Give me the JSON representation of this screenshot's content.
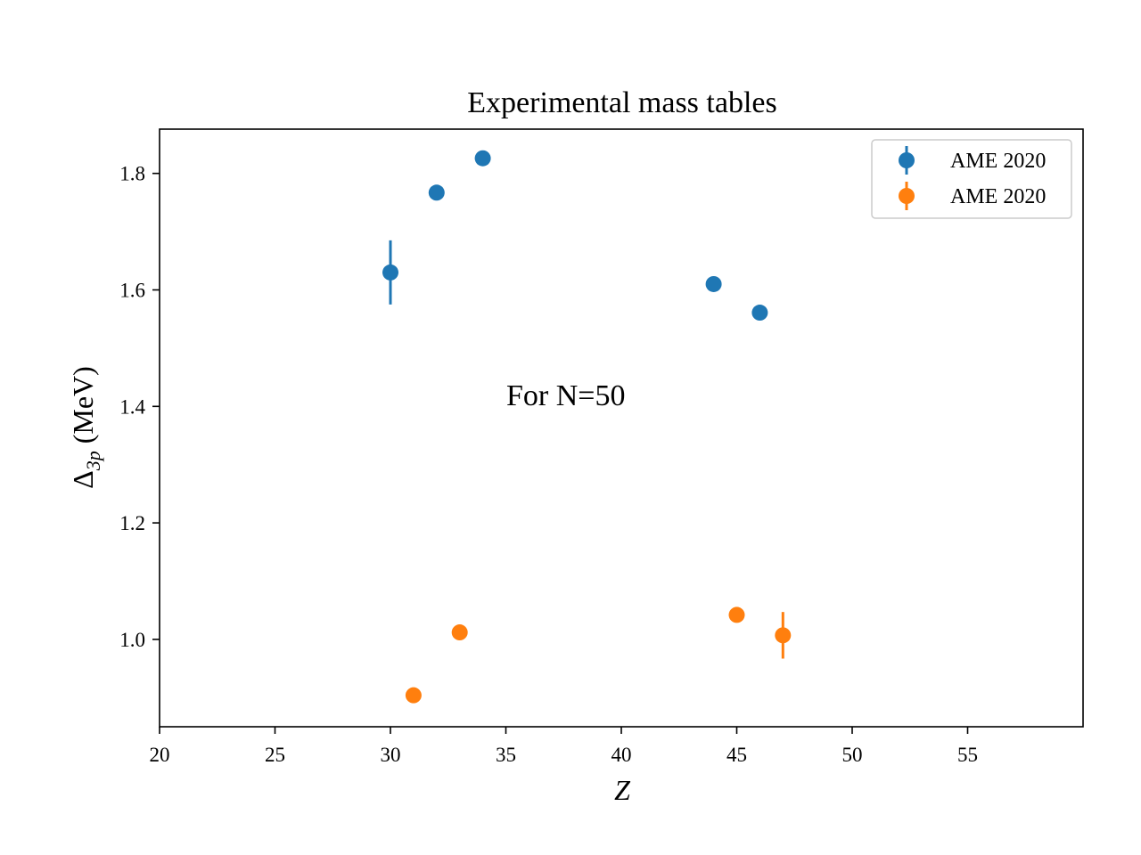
{
  "chart_data": {
    "type": "scatter",
    "title": "Experimental mass tables",
    "xlabel": "Z",
    "ylabel_main": "Δ",
    "ylabel_sub": "3p",
    "ylabel_unit": "(MeV)",
    "xlim": [
      20,
      60
    ],
    "ylim": [
      0.85,
      1.876
    ],
    "x_ticks": [
      20,
      25,
      30,
      35,
      40,
      45,
      50,
      55
    ],
    "x_tick_labels": [
      "20",
      "25",
      "30",
      "35",
      "40",
      "45",
      "50",
      "55"
    ],
    "y_ticks": [
      1.0,
      1.2,
      1.4,
      1.6,
      1.8
    ],
    "y_tick_labels": [
      "1.0",
      "1.2",
      "1.4",
      "1.6",
      "1.8"
    ],
    "grid": false,
    "legend_position": "top-right",
    "annotation": {
      "text": "For N=50",
      "x": 35.0,
      "y": 1.41
    },
    "series": [
      {
        "name": "AME 2020",
        "color": "#1f77b4",
        "x": [
          30,
          32,
          34,
          44,
          46
        ],
        "y": [
          1.63,
          1.767,
          1.826,
          1.61,
          1.561
        ],
        "yerr": [
          0.055,
          0.004,
          0.004,
          0.004,
          0.004
        ]
      },
      {
        "name": "AME 2020",
        "color": "#ff7f0e",
        "x": [
          31,
          33,
          45,
          47
        ],
        "y": [
          0.904,
          1.012,
          1.042,
          1.007
        ],
        "yerr": [
          0.004,
          0.004,
          0.004,
          0.04
        ]
      }
    ]
  }
}
